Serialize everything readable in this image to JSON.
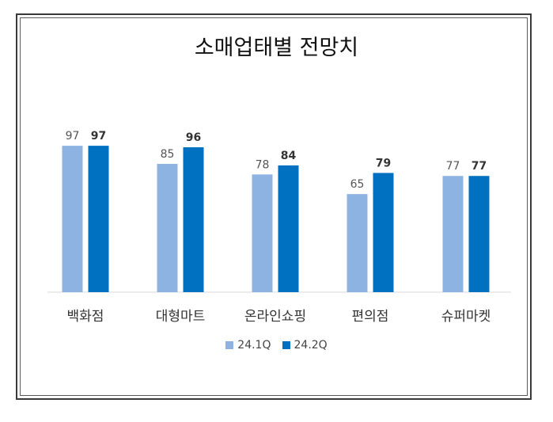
{
  "chart_data": {
    "type": "bar",
    "title": "소매업태별 전망치",
    "categories": [
      "백화점",
      "대형마트",
      "온라인쇼핑",
      "편의점",
      "슈퍼마켓"
    ],
    "series": [
      {
        "name": "24.1Q",
        "values": [
          97,
          85,
          78,
          65,
          77
        ],
        "color": "#8db3e2",
        "label_weight": "normal"
      },
      {
        "name": "24.2Q",
        "values": [
          97,
          96,
          84,
          79,
          77
        ],
        "color": "#0070c0",
        "label_weight": "bold"
      }
    ],
    "ylim": [
      0,
      110
    ],
    "grid": false,
    "legend_position": "bottom"
  }
}
